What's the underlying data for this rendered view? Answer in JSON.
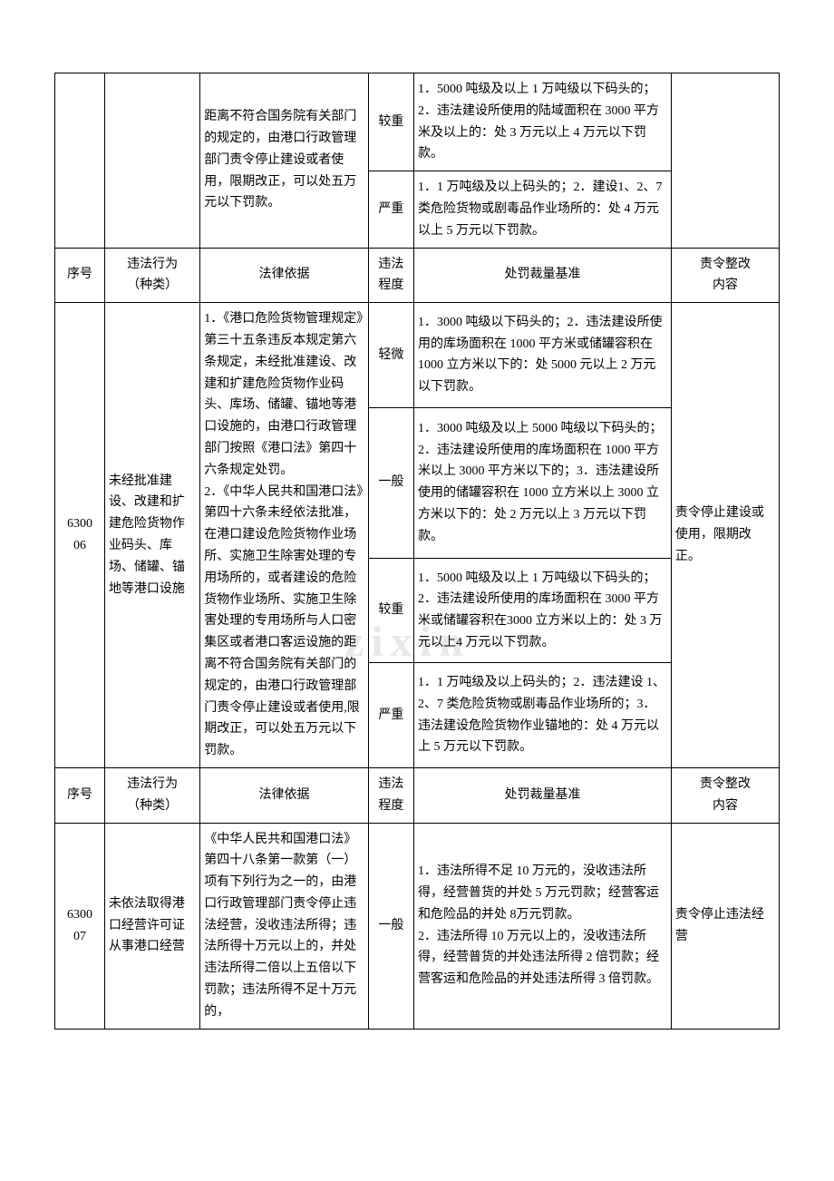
{
  "watermark": "zixin",
  "headers": {
    "col1": "序号",
    "col2": "违法行为\n（种类）",
    "col3": "法律依据",
    "col4": "违法\n程度",
    "col5": "处罚裁量基准",
    "col6": "责令整改\n内容"
  },
  "section1": {
    "basis_partial": "距离不符合国务院有关部门的规定的，由港口行政管理部门责令停止建设或者使用，限期改正，可以处五万元以下罚款。",
    "rows": [
      {
        "level": "较重",
        "standard": "1．5000 吨级及以上 1 万吨级以下码头的；2．违法建设所使用的陆域面积在 3000 平方米及以上的：处 3 万元以上 4 万元以下罚款。"
      },
      {
        "level": "严重",
        "standard": "1．1 万吨级及以上码头的；2．建设1、2、7 类危险货物或剧毒品作业场所的：处 4 万元以上 5 万元以下罚款。"
      }
    ]
  },
  "section2": {
    "id": "6300\n06",
    "type": "未经批准建设、改建和扩建危险货物作业码头、库场、储罐、锚地等港口设施",
    "basis": "1．《港口危险货物管理规定》第三十五条违反本规定第六条规定，未经批准建设、改建和扩建危险货物作业码头、库场、储罐、锚地等港口设施的，由港口行政管理部门按照《港口法》第四十六条规定处罚。\n2．《中华人民共和国港口法》第四十六条未经依法批准，在港口建设危险货物作业场所、实施卫生除害处理的专用场所的，或者建设的危险货物作业场所、实施卫生除害处理的专用场所与人口密集区或者港口客运设施的距离不符合国务院有关部门的规定的，由港口行政管理部门责令停止建设或者使用,限期改正，可以处五万元以下罚款。",
    "rectify": "责令停止建设或使用，限期改正。",
    "rows": [
      {
        "level": "轻微",
        "standard": "1．3000 吨级以下码头的；2．违法建设所使用的库场面积在 1000 平方米或储罐容积在 1000 立方米以下的：处 5000 元以上 2 万元以下罚款。"
      },
      {
        "level": "一般",
        "standard": "1．3000 吨级及以上 5000 吨级以下码头的；2．违法建设所使用的库场面积在 1000 平方米以上 3000 平方米以下的；3．违法建设所使用的储罐容积在 1000 立方米以上 3000 立方米以下的：处 2 万元以上 3 万元以下罚款。"
      },
      {
        "level": "较重",
        "standard": "1．5000 吨级及以上 1 万吨级以下码头的；2．违法建设所使用的库场面积在 3000 平方米或储罐容积在3000 立方米以上的：处 3 万元以上4 万元以下罚款。"
      },
      {
        "level": "严重",
        "standard": "1．1 万吨级及以上码头的；2．违法建设 1、2、7 类危险货物或剧毒品作业场所的；3．违法建设危险货物作业锚地的：处 4 万元以上 5 万元以下罚款。"
      }
    ]
  },
  "section3": {
    "id": "6300\n07",
    "type": "未依法取得港口经营许可证从事港口经营",
    "basis": "《中华人民共和国港口法》第四十八条第一款第（一）项有下列行为之一的，由港口行政管理部门责令停止违法经营，没收违法所得；违法所得十万元以上的，并处违法所得二倍以上五倍以下罚款；违法所得不足十万元的，",
    "rectify": "责令停止违法经营",
    "rows": [
      {
        "level": "一般",
        "standard": "1．违法所得不足 10 万元的，没收违法所得，经营普货的并处 5 万元罚款；经营客运和危险品的并处 8万元罚款。\n2．违法所得 10 万元以上的，没收违法所得，经营普货的并处违法所得 2 倍罚款；经营客运和危险品的并处违法所得 3 倍罚款。"
      }
    ]
  }
}
